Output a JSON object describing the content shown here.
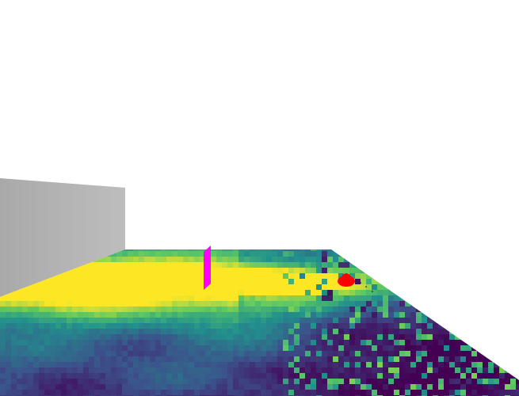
{
  "scene": {
    "background_color": "#ffffff",
    "floor_colormap": "viridis",
    "colors": {
      "wall": "#b3b3b3",
      "wall_shade": "#9e9e9e",
      "marker_panel": "#ff00ff",
      "target_blob": "#ff0000",
      "viridis_low": "#440154",
      "viridis_mid": "#21918c",
      "viridis_high": "#fde725"
    },
    "objects": [
      "gray-wall",
      "heatmap-floor",
      "magenta-marker",
      "red-target"
    ]
  }
}
